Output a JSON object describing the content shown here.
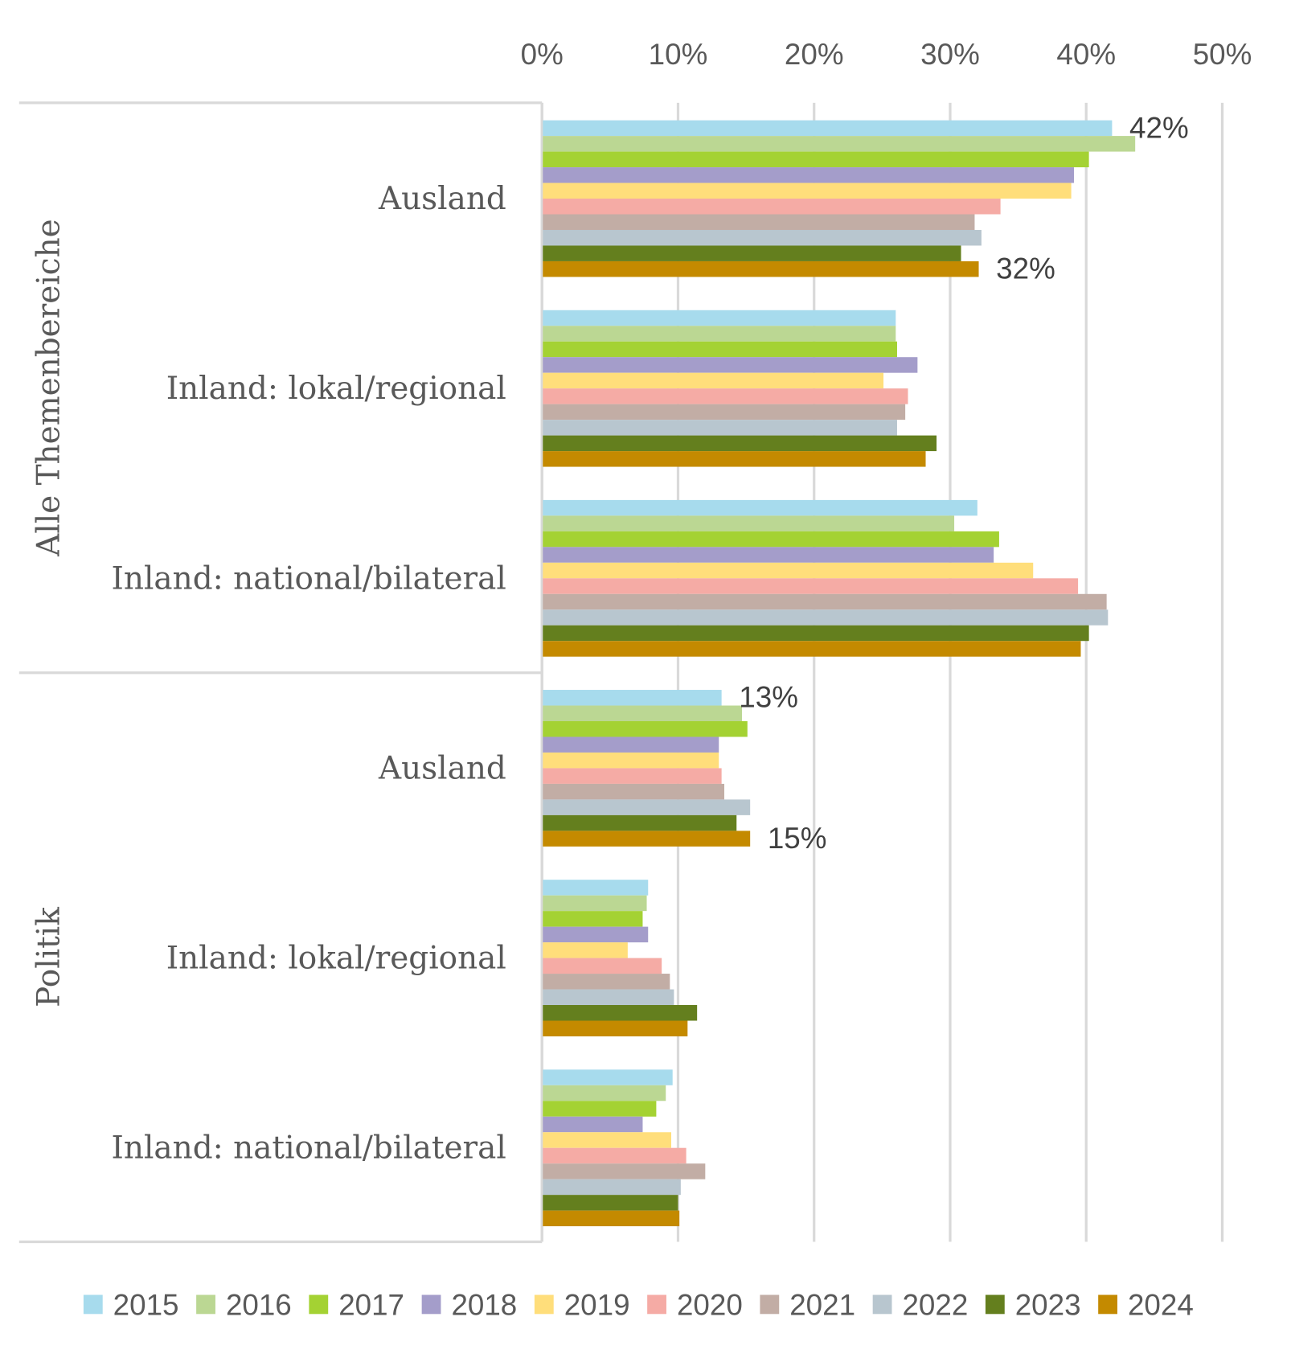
{
  "chart_data": {
    "type": "bar",
    "orientation": "horizontal",
    "xlim": [
      0,
      50
    ],
    "x_ticks": [
      "0%",
      "10%",
      "20%",
      "30%",
      "40%",
      "50%"
    ],
    "grid": true,
    "legend_position": "bottom",
    "groups": [
      {
        "label": "Alle Themenbereiche",
        "categories": [
          "Ausland",
          "Inland: lokal/regional",
          "Inland: national/bilateral"
        ]
      },
      {
        "label": "Politik",
        "categories": [
          "Ausland",
          "Inland: lokal/regional",
          "Inland: national/bilateral"
        ]
      }
    ],
    "series": [
      {
        "name": "2015",
        "color": "#A7DBED",
        "values": [
          41.9,
          26.0,
          32.0,
          13.2,
          7.8,
          9.6
        ]
      },
      {
        "name": "2016",
        "color": "#BBD793",
        "values": [
          43.6,
          26.0,
          30.3,
          14.7,
          7.7,
          9.1
        ]
      },
      {
        "name": "2017",
        "color": "#A4D233",
        "values": [
          40.2,
          26.1,
          33.6,
          15.1,
          7.4,
          8.4
        ]
      },
      {
        "name": "2018",
        "color": "#A49DCA",
        "values": [
          39.1,
          27.6,
          33.2,
          13.0,
          7.8,
          7.4
        ]
      },
      {
        "name": "2019",
        "color": "#FFDE7B",
        "values": [
          38.9,
          25.1,
          36.1,
          13.0,
          6.3,
          9.5
        ]
      },
      {
        "name": "2020",
        "color": "#F5ABA5",
        "values": [
          33.7,
          26.9,
          39.4,
          13.2,
          8.8,
          10.6
        ]
      },
      {
        "name": "2021",
        "color": "#C2ADA5",
        "values": [
          31.8,
          26.7,
          41.5,
          13.4,
          9.4,
          12.0
        ]
      },
      {
        "name": "2022",
        "color": "#B8C6CF",
        "values": [
          32.3,
          26.1,
          41.6,
          15.3,
          9.7,
          10.2
        ]
      },
      {
        "name": "2023",
        "color": "#647F1E",
        "values": [
          30.8,
          29.0,
          40.2,
          14.3,
          11.4,
          10.0
        ]
      },
      {
        "name": "2024",
        "color": "#C48A00",
        "values": [
          32.1,
          28.2,
          39.6,
          15.3,
          10.7,
          10.1
        ]
      }
    ],
    "data_labels": [
      {
        "category_index": 0,
        "series": "2015",
        "text": "42%"
      },
      {
        "category_index": 0,
        "series": "2024",
        "text": "32%"
      },
      {
        "category_index": 3,
        "series": "2015",
        "text": "13%"
      },
      {
        "category_index": 3,
        "series": "2024",
        "text": "15%"
      }
    ]
  }
}
